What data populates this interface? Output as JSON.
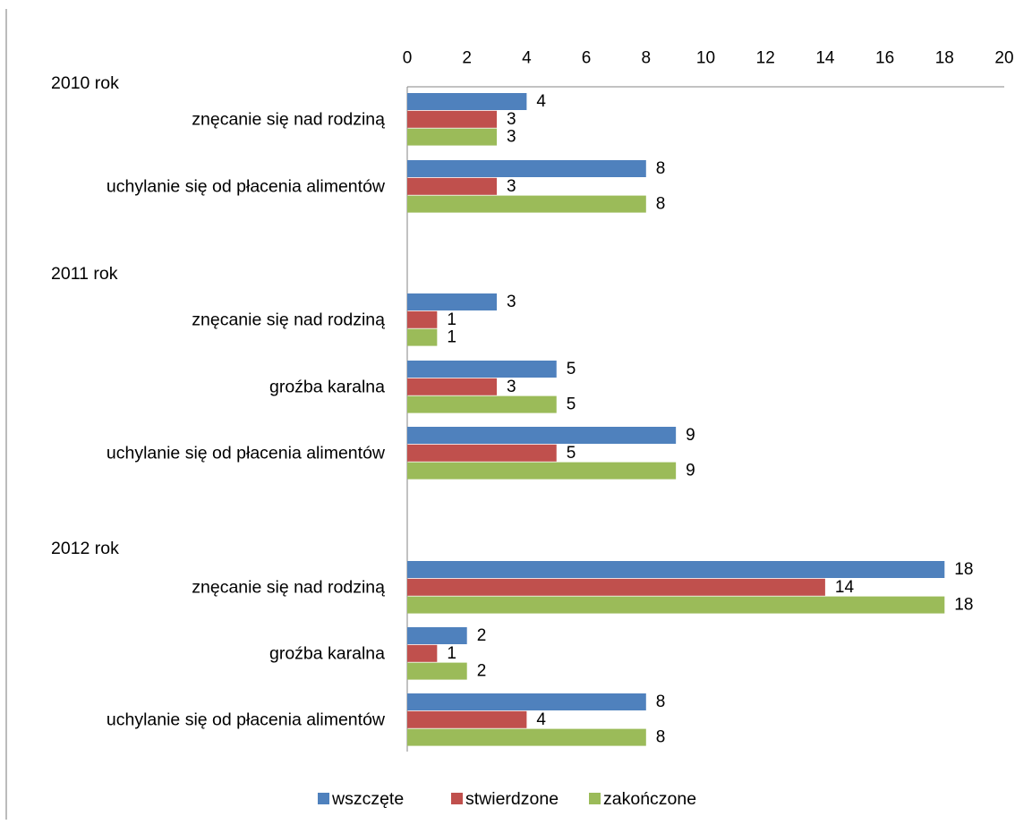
{
  "chart_data": {
    "type": "bar",
    "orientation": "horizontal",
    "xlim": [
      0,
      20
    ],
    "ticks": [
      0,
      2,
      4,
      6,
      8,
      10,
      12,
      14,
      16,
      18,
      20
    ],
    "tick_labels": [
      "0",
      "2",
      "4",
      "6",
      "8",
      "10",
      "12",
      "14",
      "16",
      "18",
      "20"
    ],
    "axis_position": "top",
    "grid": false,
    "legend_position": "bottom",
    "series": [
      {
        "name": "wszczęte",
        "color": "#4F81BD"
      },
      {
        "name": "stwierdzone",
        "color": "#C0504D"
      },
      {
        "name": "zakończone",
        "color": "#9BBB59"
      }
    ],
    "groups": [
      {
        "label": "2010 rok",
        "categories": [
          {
            "label": "znęcanie się nad rodziną",
            "values": [
              4,
              3,
              3
            ],
            "labels": [
              "4",
              "3",
              "3"
            ]
          },
          {
            "label": "uchylanie się od płacenia alimentów",
            "values": [
              8,
              3,
              8
            ],
            "labels": [
              "8",
              "3",
              "8"
            ]
          }
        ]
      },
      {
        "label": "2011 rok",
        "categories": [
          {
            "label": "znęcanie się nad rodziną",
            "values": [
              3,
              1,
              1
            ],
            "labels": [
              "3",
              "1",
              "1"
            ]
          },
          {
            "label": "groźba karalna",
            "values": [
              5,
              3,
              5
            ],
            "labels": [
              "5",
              "3",
              "5"
            ]
          },
          {
            "label": "uchylanie się od płacenia alimentów",
            "values": [
              9,
              5,
              9
            ],
            "labels": [
              "9",
              "5",
              "9"
            ]
          }
        ]
      },
      {
        "label": "2012 rok",
        "categories": [
          {
            "label": "znęcanie się nad rodziną",
            "values": [
              18,
              14,
              18
            ],
            "labels": [
              "18",
              "14",
              "18"
            ]
          },
          {
            "label": "groźba karalna",
            "values": [
              2,
              1,
              2
            ],
            "labels": [
              "2",
              "1",
              "2"
            ]
          },
          {
            "label": "uchylanie się od płacenia alimentów",
            "values": [
              8,
              4,
              8
            ],
            "labels": [
              "8",
              "4",
              "8"
            ]
          }
        ]
      }
    ]
  }
}
